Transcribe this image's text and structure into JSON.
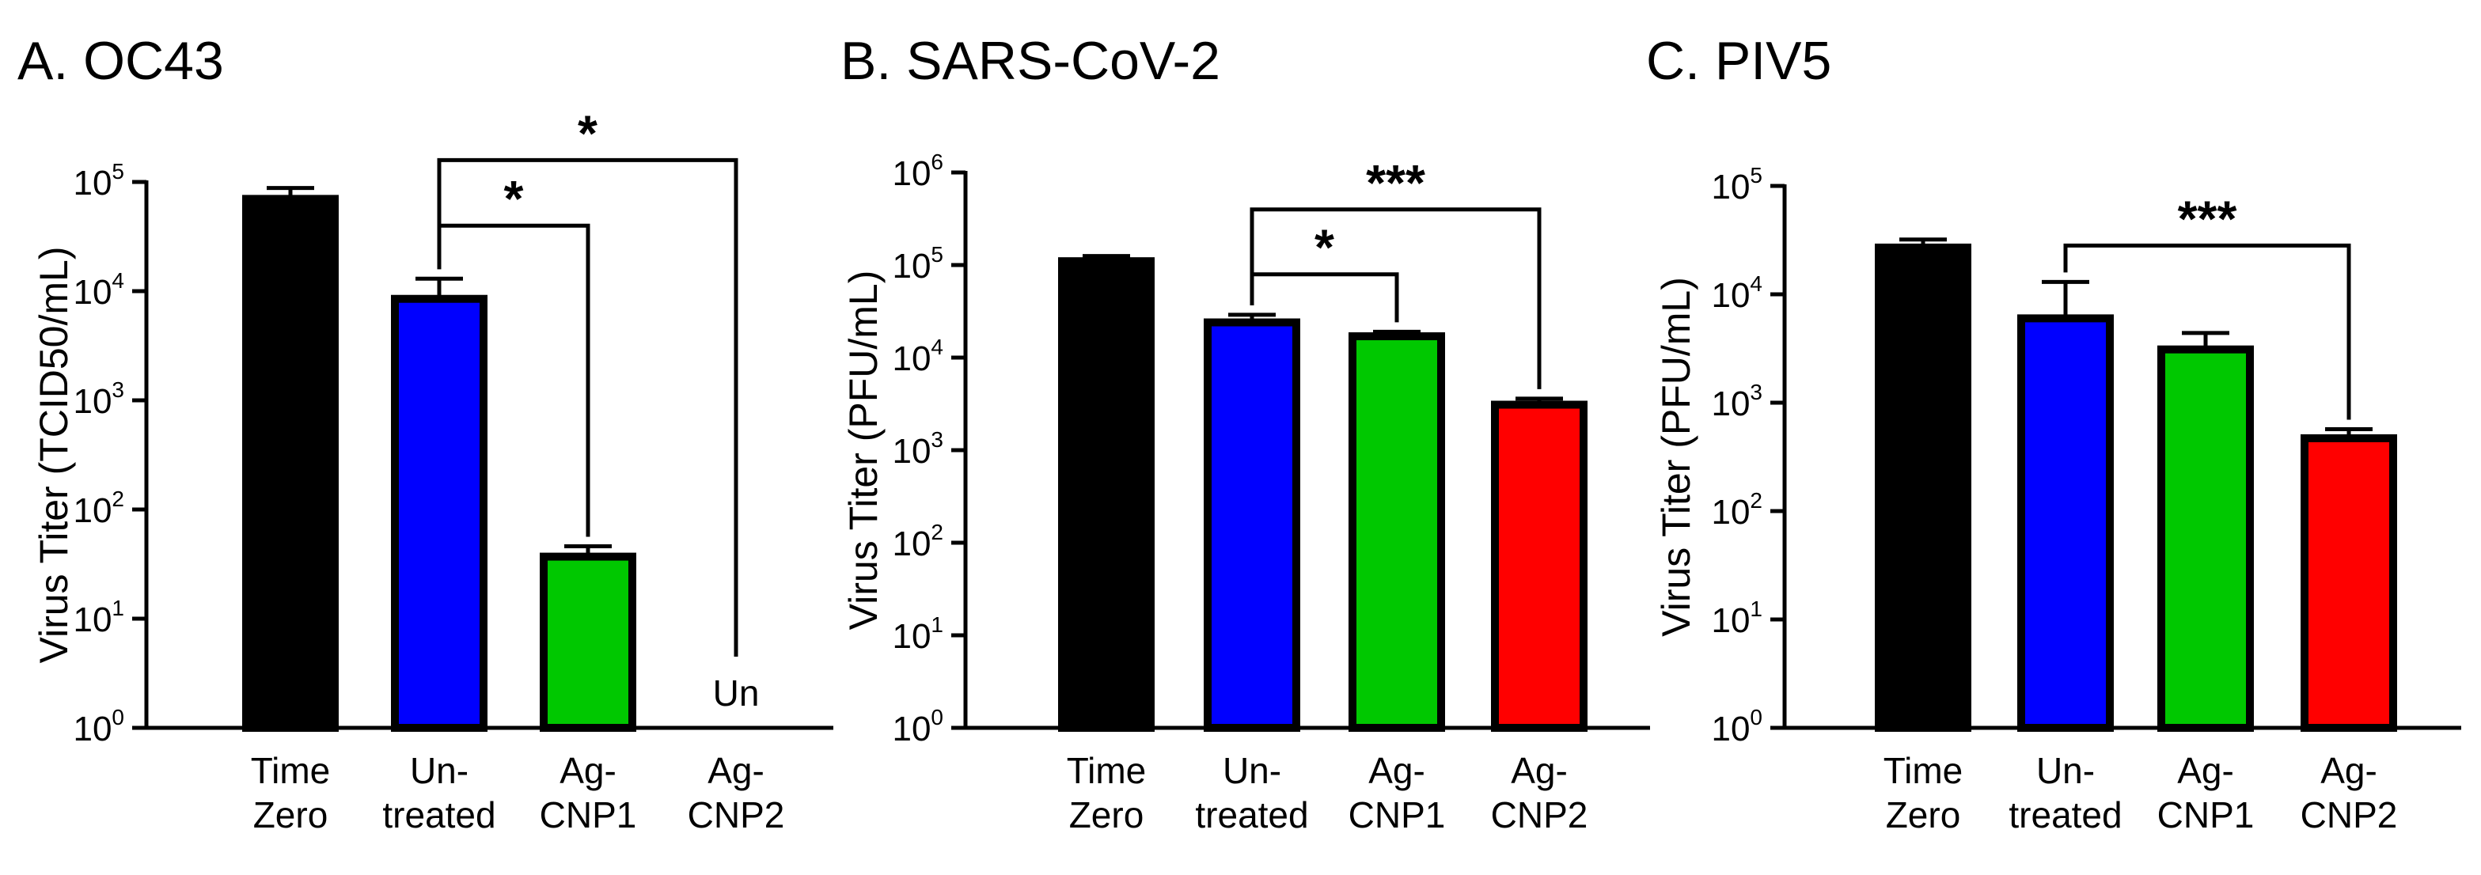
{
  "chart_data": [
    {
      "type": "bar",
      "title": "A.  OC43",
      "ylabel": "Virus Titer (TCID50/mL)",
      "yscale": "log",
      "ylim_exp": [
        0,
        5
      ],
      "ytick_base": "10",
      "yticks_exp": [
        "0",
        "1",
        "2",
        "3",
        "4",
        "5"
      ],
      "categories": [
        [
          "Time",
          "Zero"
        ],
        [
          "Un-",
          "treated"
        ],
        [
          "Ag-",
          "CNP1"
        ],
        [
          "Ag-",
          "CNP2"
        ]
      ],
      "values": [
        70000,
        8500,
        37,
        null
      ],
      "errors": [
        18000,
        4500,
        9,
        null
      ],
      "colors": [
        "#000000",
        "#0000ff",
        "#00c800",
        "#ff0000"
      ],
      "annotations": [
        {
          "category_index": 3,
          "text": "Un"
        }
      ],
      "significance": [
        {
          "from": 1,
          "to": 2,
          "label": "*",
          "level_exp": 4.6
        },
        {
          "from": 1,
          "to": 3,
          "label": "*",
          "level_exp": 5.2
        }
      ]
    },
    {
      "type": "bar",
      "title": "B.  SARS-CoV-2",
      "ylabel": "Virus Titer (PFU/mL)",
      "yscale": "log",
      "ylim_exp": [
        0,
        6
      ],
      "ytick_base": "10",
      "yticks_exp": [
        "0",
        "1",
        "2",
        "3",
        "4",
        "5",
        "6"
      ],
      "categories": [
        [
          "Time",
          "Zero"
        ],
        [
          "Un-",
          "treated"
        ],
        [
          "Ag-",
          "CNP1"
        ],
        [
          "Ag-",
          "CNP2"
        ]
      ],
      "values": [
        110000,
        24000,
        17000,
        3100
      ],
      "errors": [
        15000,
        5000,
        2000,
        500
      ],
      "colors": [
        "#000000",
        "#0000ff",
        "#00c800",
        "#ff0000"
      ],
      "annotations": [],
      "significance": [
        {
          "from": 1,
          "to": 2,
          "label": "*",
          "level_exp": 4.9
        },
        {
          "from": 1,
          "to": 3,
          "label": "***",
          "level_exp": 5.6
        }
      ]
    },
    {
      "type": "bar",
      "title": "C.  PIV5",
      "ylabel": "Virus Titer (PFU/mL)",
      "yscale": "log",
      "ylim_exp": [
        0,
        5
      ],
      "ytick_base": "10",
      "yticks_exp": [
        "0",
        "1",
        "2",
        "3",
        "4",
        "5"
      ],
      "categories": [
        [
          "Time",
          "Zero"
        ],
        [
          "Un-",
          "treated"
        ],
        [
          "Ag-",
          "CNP1"
        ],
        [
          "Ag-",
          "CNP2"
        ]
      ],
      "values": [
        27000,
        6000,
        3100,
        470
      ],
      "errors": [
        5000,
        7000,
        1300,
        100
      ],
      "colors": [
        "#000000",
        "#0000ff",
        "#00c800",
        "#ff0000"
      ],
      "annotations": [],
      "significance": [
        {
          "from": 1,
          "to": 3,
          "label": "***",
          "level_exp": 4.45
        }
      ]
    }
  ]
}
